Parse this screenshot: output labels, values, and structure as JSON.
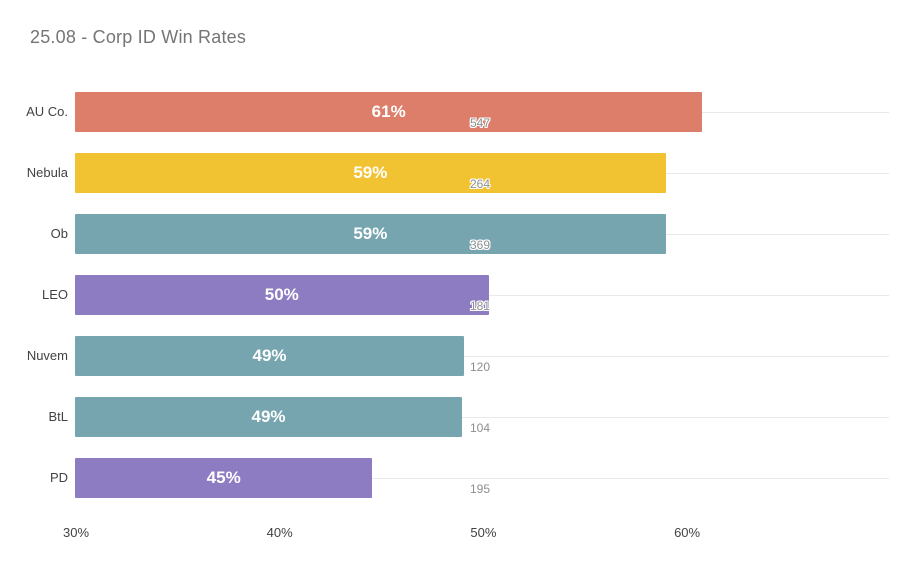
{
  "page": {
    "background": "#ffffff"
  },
  "header": {
    "title": "25.08 - Corp ID Win Rates",
    "title_color": "#757575"
  },
  "chart_data": {
    "type": "bar",
    "orientation": "horizontal",
    "title": "25.08 - Corp ID Win Rates",
    "categories": [
      "AU Co.",
      "Nebula",
      "Ob",
      "LEO",
      "Nuvem",
      "BtL",
      "PD"
    ],
    "series": [
      {
        "name": "win-rate-percent",
        "values": [
          61,
          59,
          59,
          50,
          49,
          49,
          45
        ],
        "labels": [
          "61%",
          "59%",
          "59%",
          "50%",
          "49%",
          "49%",
          "45%"
        ],
        "label_color": "#ffffff"
      },
      {
        "name": "count-annotations",
        "values": [
          547,
          264,
          369,
          181,
          120,
          104,
          195
        ],
        "label_color": "#8e8e8e"
      }
    ],
    "bar_extents_pct": [
      60.8,
      59.0,
      59.0,
      50.3,
      49.1,
      49.0,
      44.6
    ],
    "bar_colors": [
      "#dd7e6b",
      "#f1c232",
      "#76a5af",
      "#8e7cc3",
      "#76a5af",
      "#76a5af",
      "#8e7cc3"
    ],
    "x_axis": {
      "min": 30,
      "max": 70,
      "tick_labels": [
        "30%",
        "40%",
        "50%",
        "60%"
      ],
      "tick_values": [
        30,
        40,
        50,
        60
      ]
    },
    "grid": {
      "row_lines": true,
      "vertical_lines": false,
      "line_color": "#e9e9e9"
    },
    "legend": "none"
  }
}
